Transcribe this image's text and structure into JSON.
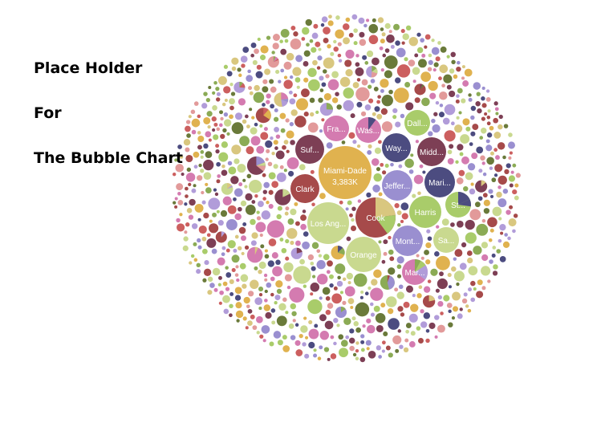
{
  "placeholder": {
    "line1": "Place Holder",
    "line2": "For",
    "line3": "The Bubble Chart"
  },
  "palette": [
    "#e0b24f",
    "#c9d98f",
    "#a9cc6a",
    "#a64a4a",
    "#7d3f55",
    "#4c4c80",
    "#d47bb0",
    "#9a8fd0",
    "#8bab55",
    "#d9c77f",
    "#e29a9a",
    "#6a7a3a",
    "#b19cd9",
    "#cc5f5f"
  ],
  "chart_data": {
    "type": "bubble",
    "bubbles": [
      {
        "label": "Miami-Dade",
        "value_label": "3,383K",
        "color": "#e0b24f"
      },
      {
        "label": "Cook",
        "color": "#a64a4a"
      },
      {
        "label": "Los Ang...",
        "color": "#c9d98f"
      },
      {
        "label": "Orange",
        "color": "#c9d98f"
      },
      {
        "label": "Harris",
        "color": "#a9cc6a"
      },
      {
        "label": "Mont...",
        "color": "#9a8fd0"
      },
      {
        "label": "Mar...",
        "color": "#d47bb0"
      },
      {
        "label": "Sa...",
        "color": "#c9d98f"
      },
      {
        "label": "St...",
        "color": "#a9cc6a"
      },
      {
        "label": "Mari...",
        "color": "#4c4c80"
      },
      {
        "label": "Jeffer...",
        "color": "#9a8fd0"
      },
      {
        "label": "Clark",
        "color": "#a64a4a"
      },
      {
        "label": "Suf...",
        "color": "#7d3f55"
      },
      {
        "label": "Fra...",
        "color": "#d47bb0"
      },
      {
        "label": "Was...",
        "color": "#d47bb0"
      },
      {
        "label": "Dall...",
        "color": "#a9cc6a"
      },
      {
        "label": "Way...",
        "color": "#4c4c80"
      },
      {
        "label": "Midd...",
        "color": "#7d3f55"
      }
    ]
  }
}
